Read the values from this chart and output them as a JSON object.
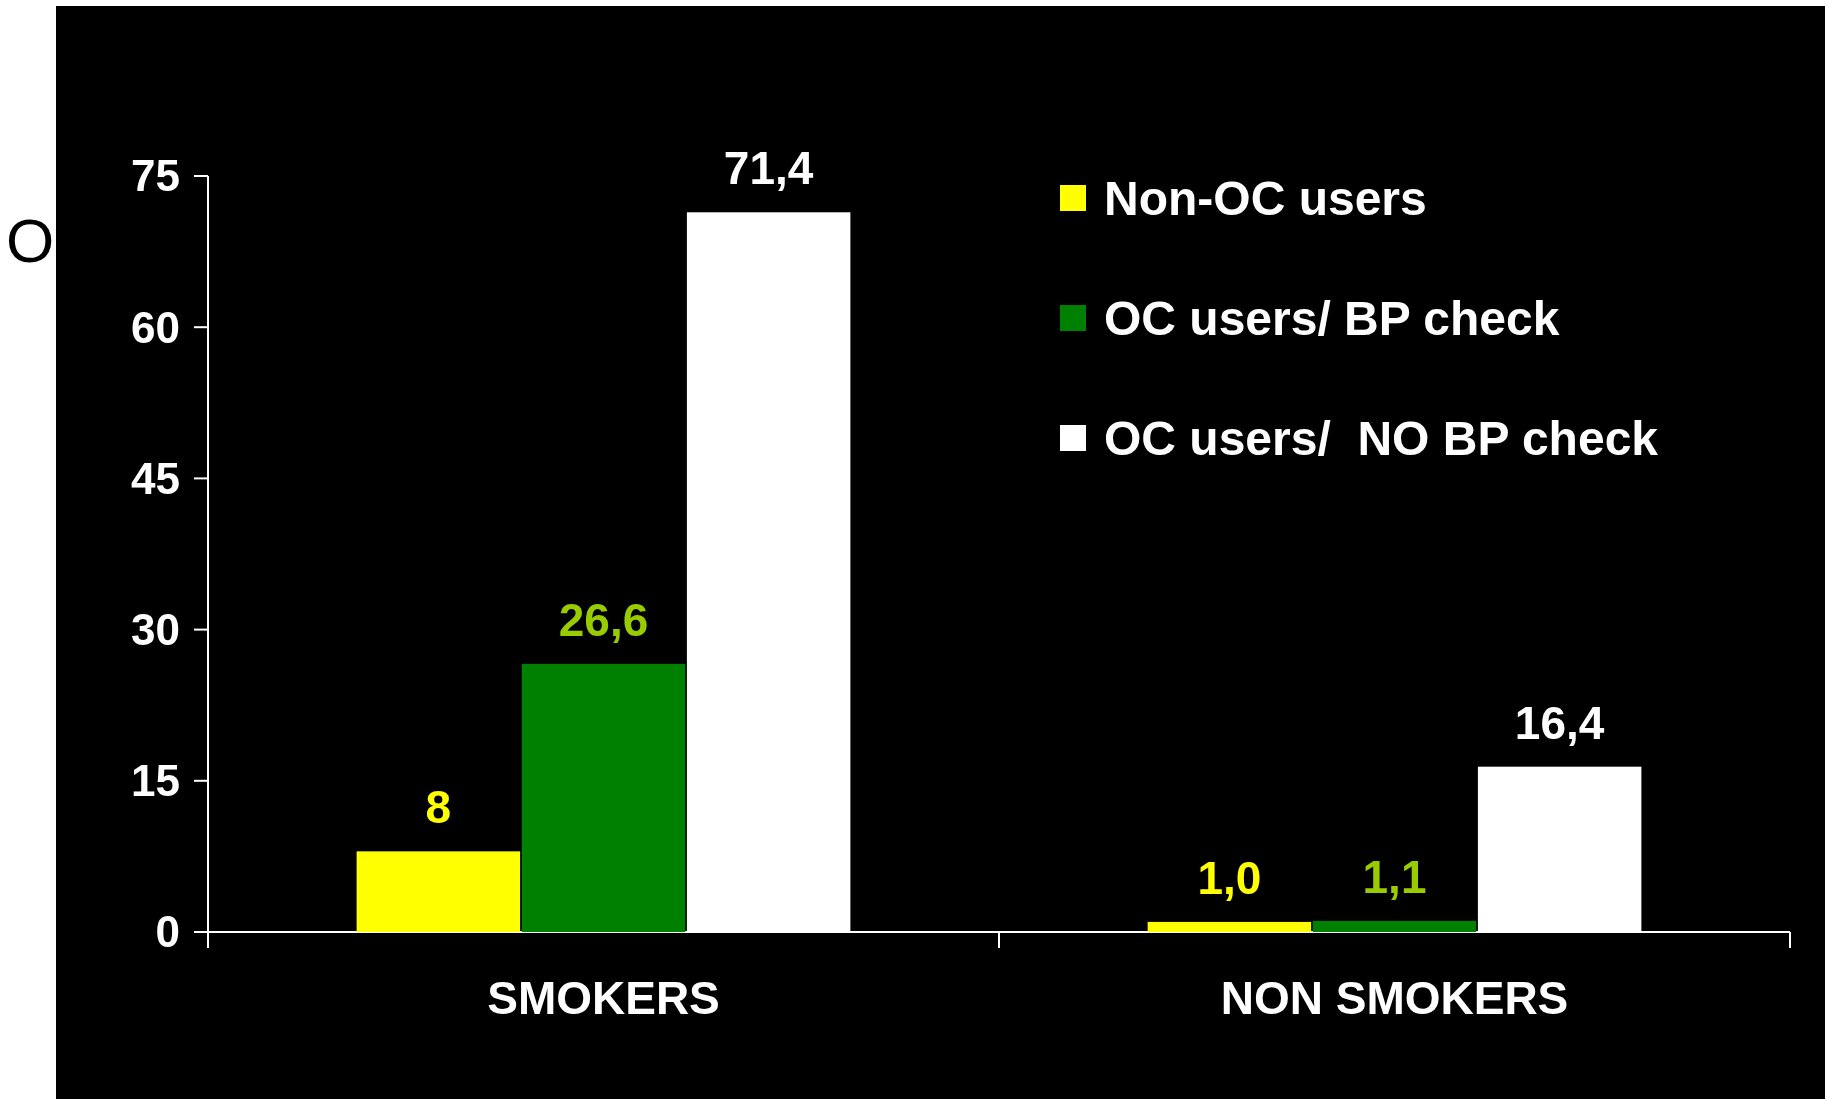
{
  "chart_data": {
    "type": "bar",
    "ylabel": "O",
    "categories": [
      "SMOKERS",
      "NON SMOKERS"
    ],
    "series": [
      {
        "name": "Non-OC users",
        "color": "#ffff00",
        "values": [
          8,
          1.0
        ],
        "value_labels": [
          "8",
          "1,0"
        ]
      },
      {
        "name": "OC users/ BP check",
        "color": "#008000",
        "values": [
          26.6,
          1.1
        ],
        "value_labels": [
          "26,6",
          "1,1"
        ]
      },
      {
        "name": "OC users/  NO BP check",
        "color": "#ffffff",
        "values": [
          71.4,
          16.4
        ],
        "value_labels": [
          "71,4",
          "16,4"
        ]
      }
    ],
    "ylim": [
      0,
      75
    ],
    "yticks": [
      0,
      15,
      30,
      45,
      60,
      75
    ],
    "grid": false,
    "legend": "top right"
  }
}
